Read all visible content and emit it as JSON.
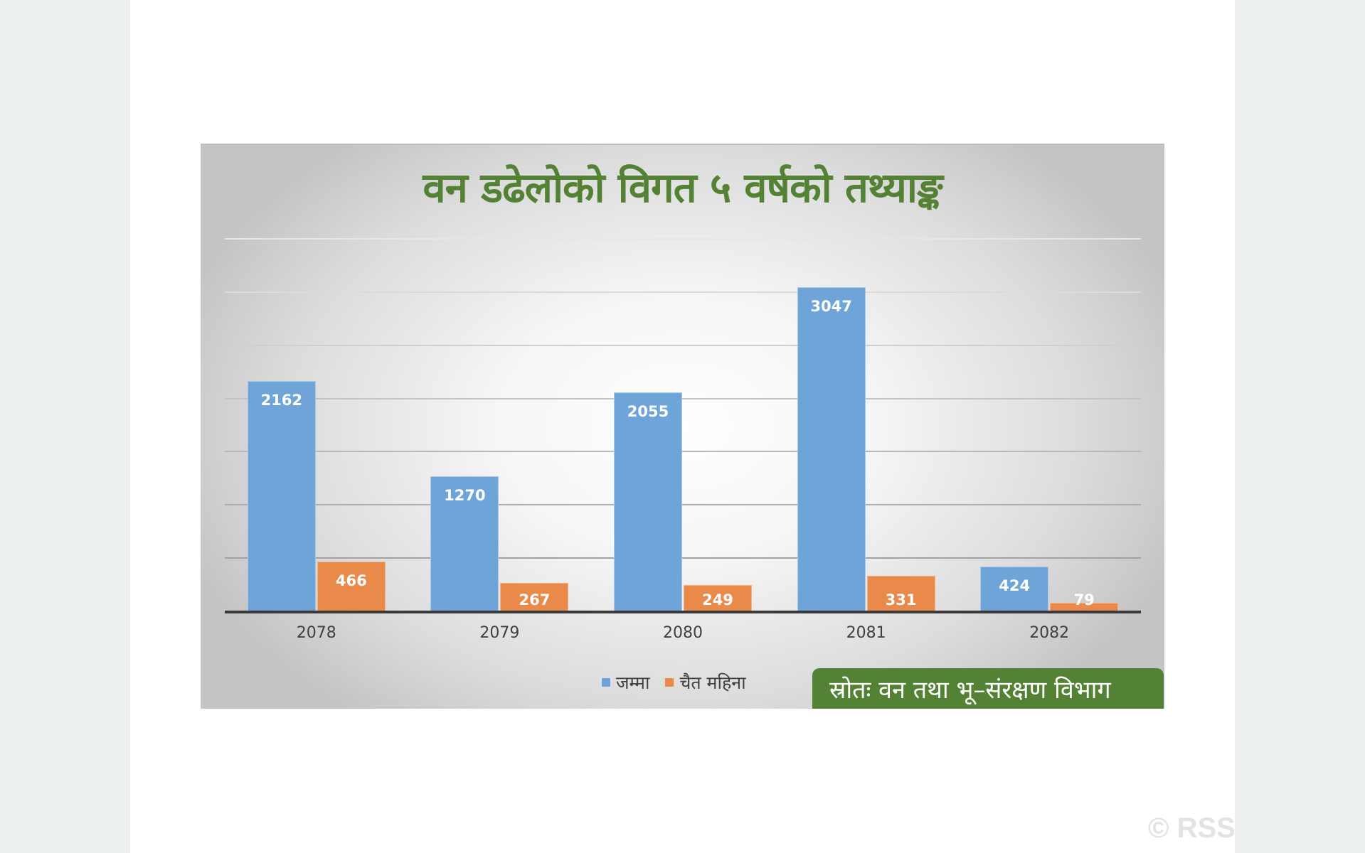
{
  "chart": {
    "title": "वन डढेलोको विगत ५ वर्षको तथ्याङ्क",
    "legend": [
      {
        "label": "जम्मा",
        "color": "#6fa4d8"
      },
      {
        "label": "चैत महिना",
        "color": "#e9894a"
      }
    ],
    "source": "स्रोतः वन तथा भू–संरक्षण विभाग",
    "categories": [
      "2078",
      "2079",
      "2080",
      "2081",
      "2082"
    ],
    "labels": {
      "total": [
        "2162",
        "1270",
        "2055",
        "3047",
        "424"
      ],
      "chaitra": [
        "466",
        "267",
        "249",
        "331",
        "79"
      ]
    }
  },
  "watermark": "© RSS",
  "colors": {
    "title": "#548235",
    "source_bg": "#548235",
    "series_total": "#6fa4d8",
    "series_chaitra": "#e9894a"
  },
  "chart_data": {
    "type": "bar",
    "title": "वन डढेलोको विगत ५ वर्षको तथ्याङ्क",
    "categories": [
      "2078",
      "2079",
      "2080",
      "2081",
      "2082"
    ],
    "series": [
      {
        "name": "जम्मा",
        "values": [
          2162,
          1270,
          2055,
          3047,
          424
        ]
      },
      {
        "name": "चैत महिना",
        "values": [
          466,
          267,
          249,
          331,
          79
        ]
      }
    ],
    "xlabel": "",
    "ylabel": "",
    "ylim": [
      0,
      3500
    ],
    "grid": true,
    "gridline_step": 500,
    "legend_position": "bottom",
    "annotations": [
      "स्रोतः वन तथा भू–संरक्षण विभाग"
    ]
  }
}
